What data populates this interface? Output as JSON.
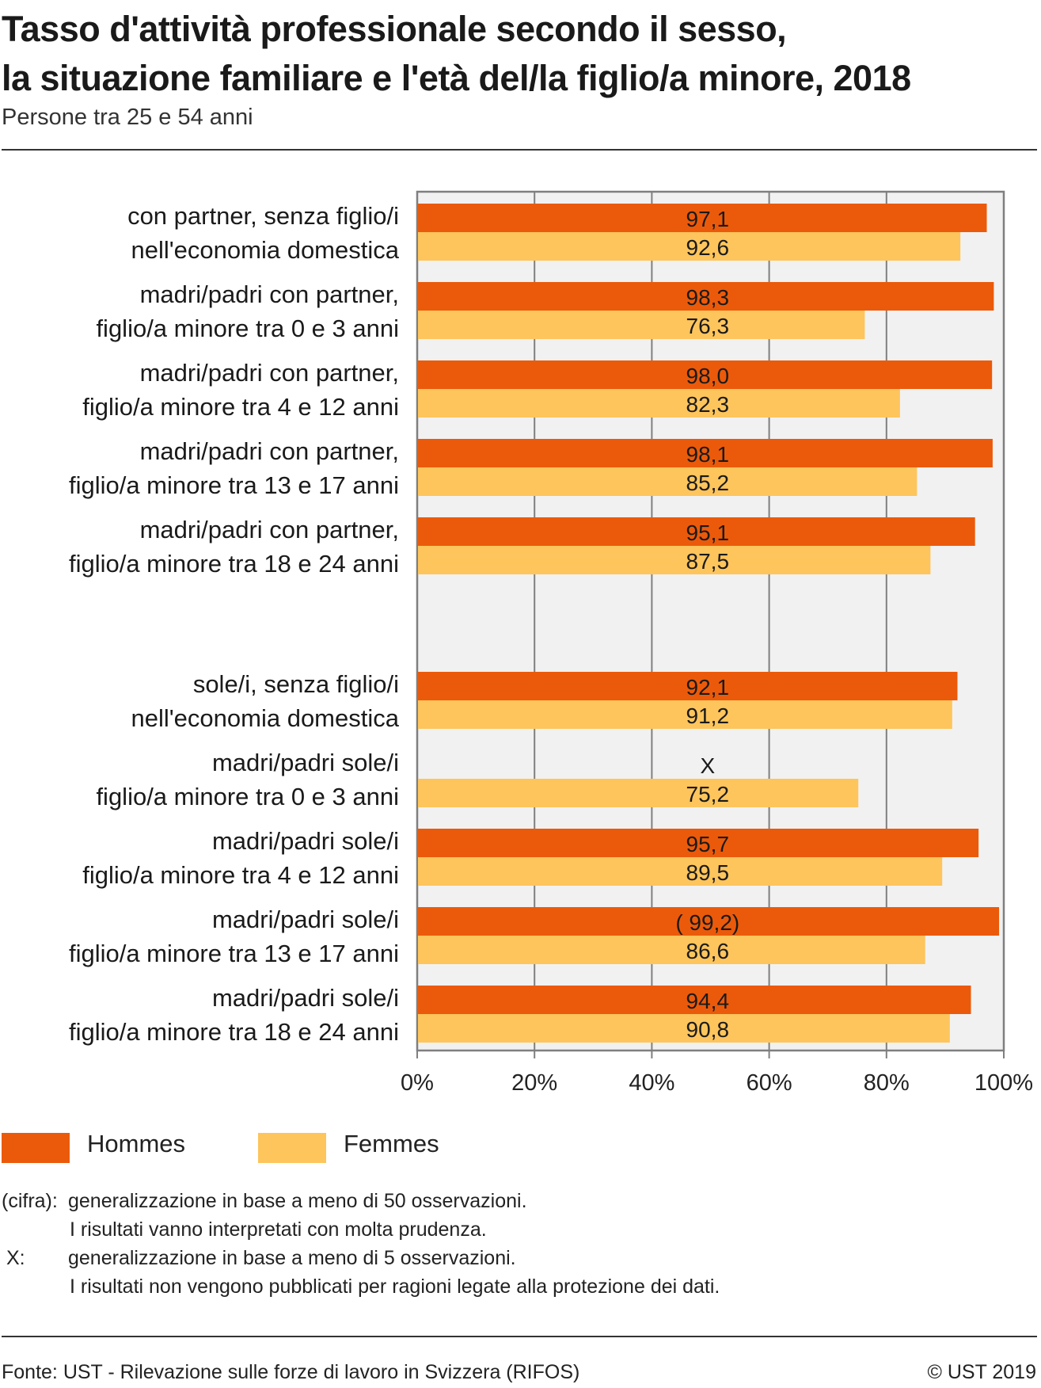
{
  "title_line1": "Tasso d'attività professionale secondo il sesso,",
  "title_line2": "la situazione familiare e l'età del/la figlio/a minore, 2018",
  "subtitle": "Persone tra 25 e 54 anni",
  "colors": {
    "hommes": "#EB5A0A",
    "femmes": "#FDC55C",
    "plot_bg": "#F1F1F1",
    "grid": "#7F7F7F"
  },
  "chart_data": {
    "type": "bar",
    "orientation": "horizontal",
    "xlim": [
      0,
      100
    ],
    "x_ticks": [
      "0%",
      "20%",
      "40%",
      "60%",
      "80%",
      "100%"
    ],
    "grid": true,
    "legend_position": "bottom-left",
    "categories": [
      [
        "con partner, senza figlio/i",
        "nell'economia domestica"
      ],
      [
        "madri/padri con partner,",
        "figlio/a minore tra 0 e 3 anni"
      ],
      [
        "madri/padri con partner,",
        "figlio/a minore tra 4 e 12 anni"
      ],
      [
        "madri/padri con partner,",
        "figlio/a minore tra 13 e 17 anni"
      ],
      [
        "madri/padri con partner,",
        "figlio/a minore tra 18 e 24 anni"
      ],
      [
        "sole/i, senza figlio/i",
        "nell'economia domestica"
      ],
      [
        "madri/padri sole/i",
        "figlio/a minore tra 0 e 3 anni"
      ],
      [
        "madri/padri sole/i",
        "figlio/a minore tra 4 e 12 anni"
      ],
      [
        "madri/padri sole/i",
        "figlio/a minore tra 13 e 17 anni"
      ],
      [
        "madri/padri sole/i",
        "figlio/a minore tra 18 e 24 anni"
      ]
    ],
    "groups": [
      [
        0,
        1,
        2,
        3,
        4
      ],
      [
        5,
        6,
        7,
        8,
        9
      ]
    ],
    "series": [
      {
        "name": "Hommes",
        "values": [
          97.1,
          98.3,
          98.0,
          98.1,
          95.1,
          92.1,
          null,
          95.7,
          99.2,
          94.4
        ],
        "labels": [
          "97,1",
          "98,3",
          "98,0",
          "98,1",
          "95,1",
          "92,1",
          "X",
          "95,7",
          "( 99,2)",
          "94,4"
        ]
      },
      {
        "name": "Femmes",
        "values": [
          92.6,
          76.3,
          82.3,
          85.2,
          87.5,
          91.2,
          75.2,
          89.5,
          86.6,
          90.8
        ],
        "labels": [
          "92,6",
          "76,3",
          "82,3",
          "85,2",
          "87,5",
          "91,2",
          "75,2",
          "89,5",
          "86,6",
          "90,8"
        ]
      }
    ]
  },
  "notes": {
    "cifra_key": "(cifra):",
    "cifra_line1": "generalizzazione in base a meno di 50 osservazioni.",
    "cifra_line2": "I risultati vanno interpretati con molta prudenza.",
    "x_key": "X:",
    "x_line1": "generalizzazione in base a meno di 5 osservazioni.",
    "x_line2": "I risultati non vengono pubblicati per ragioni legate alla protezione dei dati."
  },
  "footer": {
    "source": "Fonte: UST - Rilevazione sulle forze di lavoro in Svizzera (RIFOS)",
    "copyright": "© UST 2019"
  }
}
